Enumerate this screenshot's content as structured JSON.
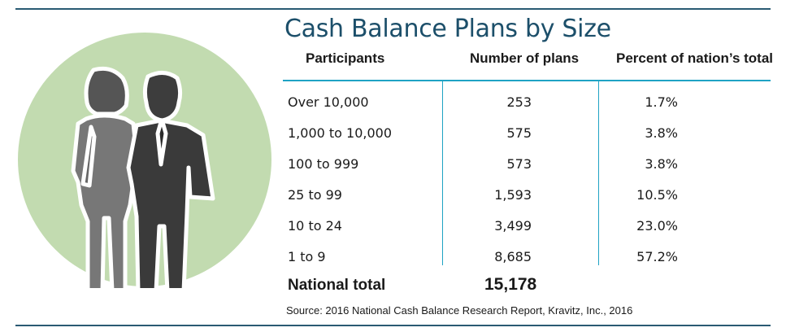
{
  "title": "Cash Balance Plans by Size",
  "colors": {
    "rule": "#2a5a73",
    "accent": "#1fa3c4",
    "title": "#1c4f6a",
    "circle": "#c2dbb0"
  },
  "table": {
    "headers": [
      "Participants",
      "Number of plans",
      "Percent of nation’s total"
    ],
    "rows": [
      {
        "participants": "Over 10,000",
        "plans": "253",
        "percent": "1.7%"
      },
      {
        "participants": "1,000 to 10,000",
        "plans": "575",
        "percent": "3.8%"
      },
      {
        "participants": "100 to 999",
        "plans": "573",
        "percent": "3.8%"
      },
      {
        "participants": "25 to 99",
        "plans": "1,593",
        "percent": "10.5%"
      },
      {
        "participants": "10 to 24",
        "plans": "3,499",
        "percent": "23.0%"
      },
      {
        "participants": "1 to 9",
        "plans": "8,685",
        "percent": "57.2%"
      }
    ],
    "total_label": "National total",
    "total_value": "15,178"
  },
  "source": "Source: 2016 National Cash Balance Research Report, Kravitz, Inc., 2016",
  "chart_data": {
    "type": "table",
    "title": "Cash Balance Plans by Size",
    "columns": [
      "Participants",
      "Number of plans",
      "Percent of nation’s total"
    ],
    "rows": [
      [
        "Over 10,000",
        253,
        1.7
      ],
      [
        "1,000 to 10,000",
        575,
        3.8
      ],
      [
        "100 to 999",
        573,
        3.8
      ],
      [
        "25 to 99",
        1593,
        10.5
      ],
      [
        "10 to 24",
        3499,
        23.0
      ],
      [
        "1 to 9",
        8685,
        57.2
      ]
    ],
    "total": {
      "label": "National total",
      "plans": 15178
    }
  }
}
